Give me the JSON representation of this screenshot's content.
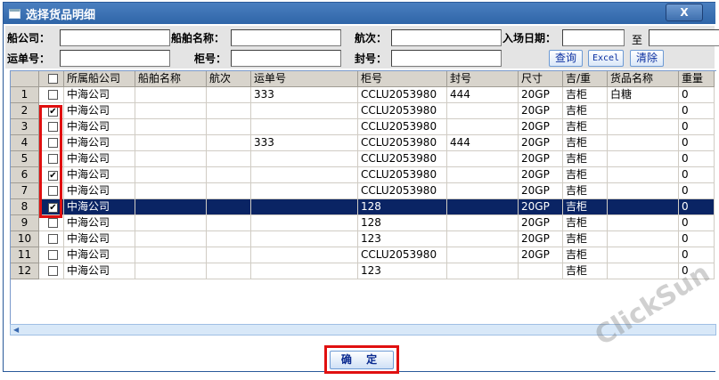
{
  "window": {
    "title": "选择货品明细",
    "close_label": "X"
  },
  "form": {
    "ship_company_label": "船公司：",
    "ship_name_label": "船舶名称：",
    "voyage_label": "航次：",
    "entry_date_label": "入场日期：",
    "date_to": "至",
    "waybill_label": "运单号：",
    "container_label": "柜号：",
    "seal_label": "封号：",
    "ship_company": "",
    "ship_name": "",
    "voyage": "",
    "date_from": "",
    "date_end": "",
    "waybill": "",
    "container": "",
    "seal": "",
    "query_label": "查询",
    "excel_label": "Excel",
    "clear_label": "清除"
  },
  "grid": {
    "columns": [
      "所属船公司",
      "船舶名称",
      "航次",
      "运单号",
      "柜号",
      "封号",
      "尺寸",
      "吉/重",
      "货品名称",
      "重量"
    ],
    "rows": [
      {
        "n": "1",
        "checked": false,
        "c": [
          "中海公司",
          "",
          "",
          "333",
          "CCLU2053980",
          "444",
          "20GP",
          "吉柜",
          "白糖",
          "0"
        ]
      },
      {
        "n": "2",
        "checked": true,
        "c": [
          "中海公司",
          "",
          "",
          "",
          "CCLU2053980",
          "",
          "20GP",
          "吉柜",
          "",
          "0"
        ]
      },
      {
        "n": "3",
        "checked": false,
        "c": [
          "中海公司",
          "",
          "",
          "",
          "CCLU2053980",
          "",
          "20GP",
          "吉柜",
          "",
          "0"
        ]
      },
      {
        "n": "4",
        "checked": false,
        "c": [
          "中海公司",
          "",
          "",
          "333",
          "CCLU2053980",
          "444",
          "20GP",
          "吉柜",
          "",
          "0"
        ]
      },
      {
        "n": "5",
        "checked": false,
        "c": [
          "中海公司",
          "",
          "",
          "",
          "CCLU2053980",
          "",
          "20GP",
          "吉柜",
          "",
          "0"
        ]
      },
      {
        "n": "6",
        "checked": true,
        "c": [
          "中海公司",
          "",
          "",
          "",
          "CCLU2053980",
          "",
          "20GP",
          "吉柜",
          "",
          "0"
        ]
      },
      {
        "n": "7",
        "checked": false,
        "c": [
          "中海公司",
          "",
          "",
          "",
          "CCLU2053980",
          "",
          "20GP",
          "吉柜",
          "",
          "0"
        ]
      },
      {
        "n": "8",
        "checked": true,
        "selected": true,
        "c": [
          "中海公司",
          "",
          "",
          "",
          "128",
          "",
          "20GP",
          "吉柜",
          "",
          "0"
        ]
      },
      {
        "n": "9",
        "checked": false,
        "c": [
          "中海公司",
          "",
          "",
          "",
          "128",
          "",
          "20GP",
          "吉柜",
          "",
          "0"
        ]
      },
      {
        "n": "10",
        "checked": false,
        "c": [
          "中海公司",
          "",
          "",
          "",
          "123",
          "",
          "20GP",
          "吉柜",
          "",
          "0"
        ]
      },
      {
        "n": "11",
        "checked": false,
        "c": [
          "中海公司",
          "",
          "",
          "",
          "CCLU2053980",
          "",
          "20GP",
          "吉柜",
          "",
          "0"
        ]
      },
      {
        "n": "12",
        "checked": false,
        "c": [
          "中海公司",
          "",
          "",
          "",
          "123",
          "",
          "",
          "吉柜",
          "",
          "0"
        ]
      }
    ]
  },
  "footer": {
    "confirm_label": "确 定"
  },
  "watermark": "ClickSun"
}
